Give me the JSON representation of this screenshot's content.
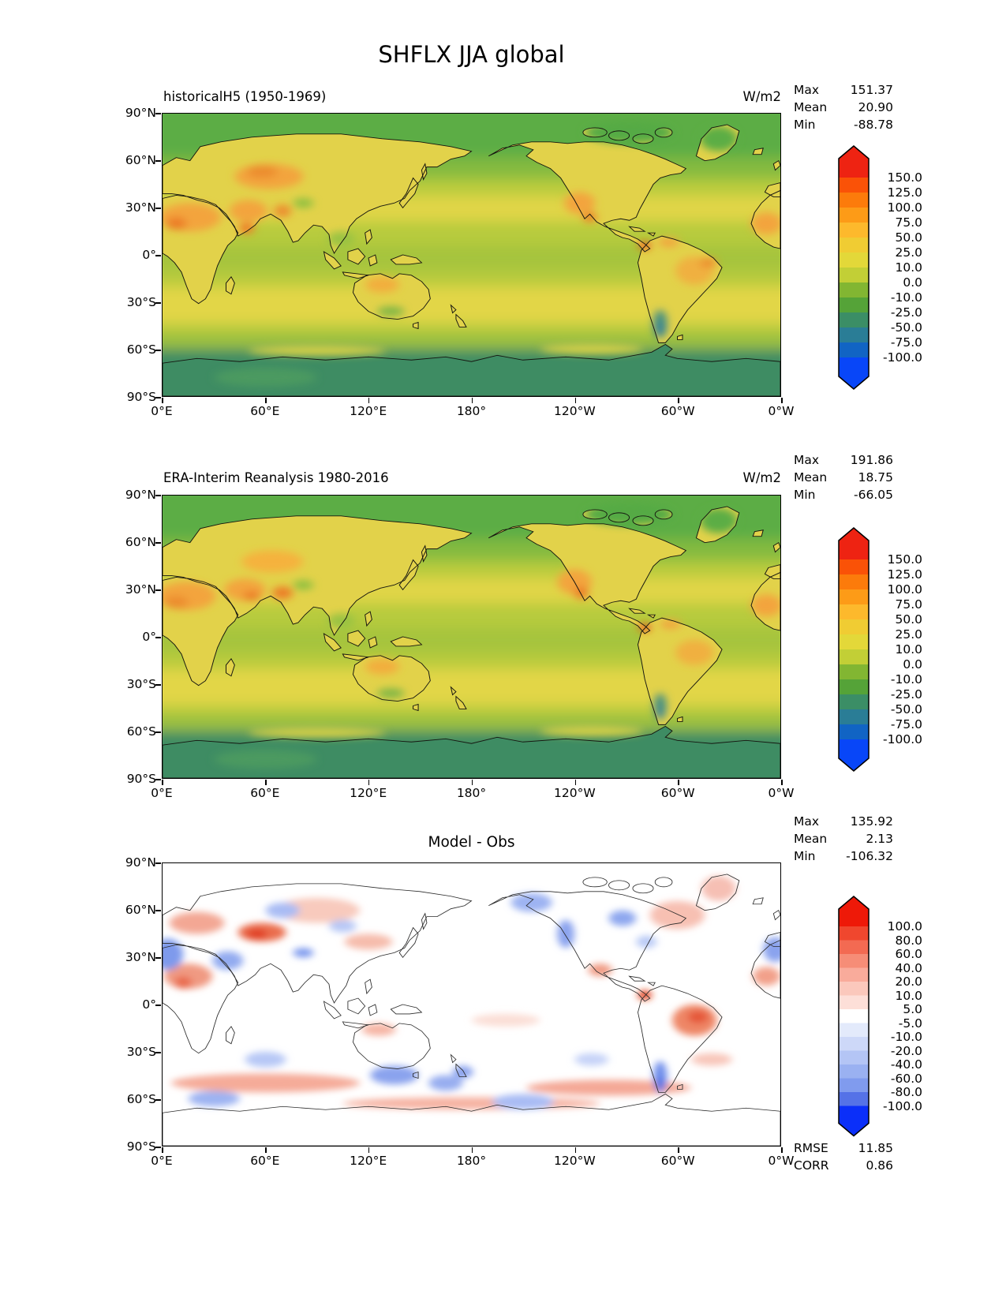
{
  "figure": {
    "title": "SHFLX JJA global"
  },
  "chart_data": [
    {
      "type": "heatmap",
      "projection": "global longitude-latitude filled-contour map, Pacific-centered (0E to 0W)",
      "title": "historicalH5 (1950-1969)",
      "units": "W/m2",
      "x_ticks": [
        "0°E",
        "60°E",
        "120°E",
        "180°",
        "120°W",
        "60°W",
        "0°W"
      ],
      "y_ticks": [
        "90°N",
        "60°N",
        "30°N",
        "0°",
        "30°S",
        "60°S",
        "90°S"
      ],
      "stats": {
        "rows": [
          {
            "label": "Max",
            "value": "151.37"
          },
          {
            "label": "Mean",
            "value": "20.90"
          },
          {
            "label": "Min",
            "value": "-88.78"
          }
        ]
      },
      "colorbar": {
        "levels": [
          "150.0",
          "125.0",
          "100.0",
          "75.0",
          "50.0",
          "25.0",
          "10.0",
          "0.0",
          "-10.0",
          "-25.0",
          "-50.0",
          "-75.0",
          "-100.0"
        ],
        "band_colors": [
          "#ee2312",
          "#fa5207",
          "#fc7b0b",
          "#fd9b17",
          "#fdb92c",
          "#f0cc33",
          "#e3d839",
          "#c2cf36",
          "#82b632",
          "#55a338",
          "#3b8e66",
          "#2a7d96",
          "#1164c4",
          "#0846f8"
        ],
        "extend": "both arrows"
      }
    },
    {
      "type": "heatmap",
      "projection": "global longitude-latitude filled-contour map, Pacific-centered (0E to 0W)",
      "title": "ERA-Interim Reanalysis 1980-2016",
      "units": "W/m2",
      "x_ticks": [
        "0°E",
        "60°E",
        "120°E",
        "180°",
        "120°W",
        "60°W",
        "0°W"
      ],
      "y_ticks": [
        "90°N",
        "60°N",
        "30°N",
        "0°",
        "30°S",
        "60°S",
        "90°S"
      ],
      "stats": {
        "rows": [
          {
            "label": "Max",
            "value": "191.86"
          },
          {
            "label": "Mean",
            "value": "18.75"
          },
          {
            "label": "Min",
            "value": "-66.05"
          }
        ]
      },
      "colorbar": {
        "levels": [
          "150.0",
          "125.0",
          "100.0",
          "75.0",
          "50.0",
          "25.0",
          "10.0",
          "0.0",
          "-10.0",
          "-25.0",
          "-50.0",
          "-75.0",
          "-100.0"
        ],
        "band_colors": [
          "#ee2312",
          "#fa5207",
          "#fc7b0b",
          "#fd9b17",
          "#fdb92c",
          "#f0cc33",
          "#e3d839",
          "#c2cf36",
          "#82b632",
          "#55a338",
          "#3b8e66",
          "#2a7d96",
          "#1164c4",
          "#0846f8"
        ],
        "extend": "both arrows"
      }
    },
    {
      "type": "heatmap",
      "projection": "global longitude-latitude filled-contour difference map, Pacific-centered (0E to 0W)",
      "title": "Model - Obs",
      "units": "W/m2",
      "x_ticks": [
        "0°E",
        "60°E",
        "120°E",
        "180°",
        "120°W",
        "60°W",
        "0°W"
      ],
      "y_ticks": [
        "90°N",
        "60°N",
        "30°N",
        "0°",
        "30°S",
        "60°S",
        "90°S"
      ],
      "stats": {
        "rows": [
          {
            "label": "Max",
            "value": "135.92"
          },
          {
            "label": "Mean",
            "value": "2.13"
          },
          {
            "label": "Min",
            "value": "-106.32"
          }
        ]
      },
      "extra_stats": {
        "rows": [
          {
            "label": "RMSE",
            "value": "11.85"
          },
          {
            "label": "CORR",
            "value": "0.86"
          }
        ]
      },
      "colorbar": {
        "levels": [
          "100.0",
          "80.0",
          "60.0",
          "40.0",
          "20.0",
          "10.0",
          "5.0",
          "-5.0",
          "-10.0",
          "-20.0",
          "-40.0",
          "-60.0",
          "-80.0",
          "-100.0"
        ],
        "band_colors": [
          "#ee1908",
          "#f0472e",
          "#f36a52",
          "#f68d77",
          "#f9ab9b",
          "#fbc8bc",
          "#fddfd8",
          "#ffffff",
          "#e3eafb",
          "#cdd8f8",
          "#b4c5f5",
          "#9ab1f1",
          "#809bee",
          "#5572e7",
          "#0b2ff9"
        ],
        "extend": "both arrows"
      }
    }
  ]
}
